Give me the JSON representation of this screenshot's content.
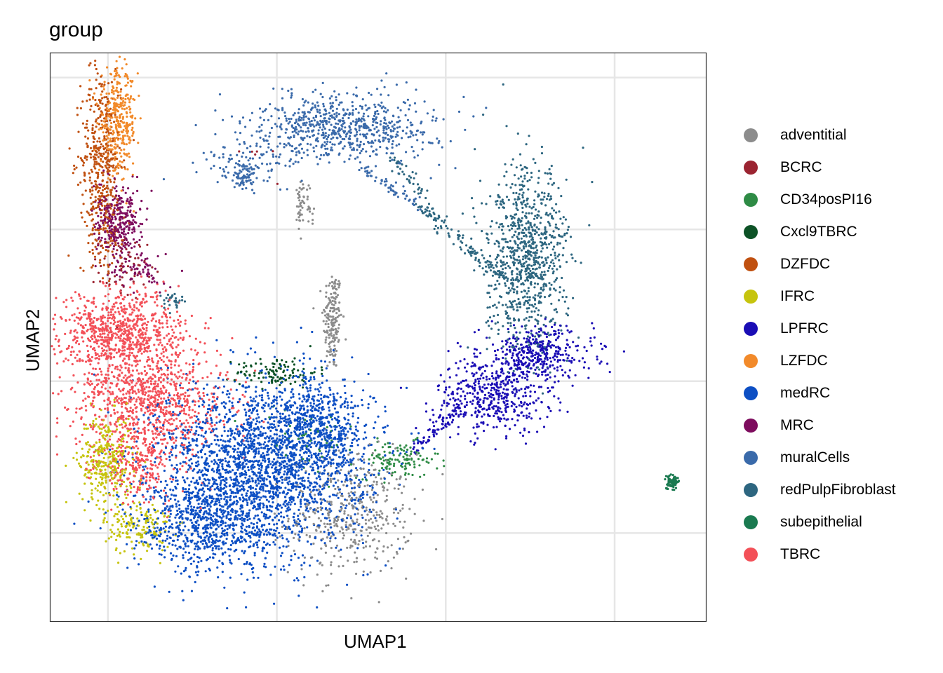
{
  "chart_data": {
    "type": "scatter",
    "title": "group",
    "xlabel": "UMAP1",
    "ylabel": "UMAP2",
    "x_ticks_labeled": false,
    "y_ticks_labeled": false,
    "grid": true,
    "legend_position": "right",
    "legend_dot_style": "filled circle",
    "series": [
      {
        "name": "adventitial",
        "color": "#8c8c8c",
        "clusters": [
          {
            "cx": 4.65,
            "cy": 5.0,
            "sx": 0.14,
            "sy": 0.85,
            "n": 180
          },
          {
            "cx": 5.2,
            "cy": -1.4,
            "sx": 0.9,
            "sy": 1.0,
            "n": 420
          },
          {
            "cx": 3.7,
            "cy": 8.8,
            "sx": 0.05,
            "sy": 0.5,
            "n": 25
          }
        ]
      },
      {
        "name": "BCRC",
        "color": "#9b2431",
        "clusters": [
          {
            "cx": -1.55,
            "cy": 6.7,
            "sx": 0.35,
            "sy": 0.5,
            "n": 60
          },
          {
            "cx": 2.2,
            "cy": 10.4,
            "sx": 0.6,
            "sy": 0.3,
            "n": 6
          }
        ]
      },
      {
        "name": "CD34posPI16",
        "color": "#2e8b45",
        "clusters": [
          {
            "cx": 6.6,
            "cy": 0.4,
            "sx": 0.6,
            "sy": 0.3,
            "n": 120
          },
          {
            "cx": 3.8,
            "cy": 1.1,
            "sx": 0.8,
            "sy": 0.6,
            "n": 40
          }
        ]
      },
      {
        "name": "Cxcl9TBRC",
        "color": "#0d5226",
        "clusters": [
          {
            "cx": 3.0,
            "cy": 3.3,
            "sx": 0.6,
            "sy": 0.25,
            "n": 110
          }
        ]
      },
      {
        "name": "DZFDC",
        "color": "#c05010",
        "clusters": [
          {
            "cx": -2.2,
            "cy": 10.3,
            "sx": 0.3,
            "sy": 1.5,
            "n": 420
          },
          {
            "cx": -2.0,
            "cy": 7.8,
            "sx": 0.35,
            "sy": 0.6,
            "n": 60
          }
        ]
      },
      {
        "name": "IFRC",
        "color": "#c6c40e",
        "clusters": [
          {
            "cx": -2.05,
            "cy": 0.4,
            "sx": 0.4,
            "sy": 0.75,
            "n": 320
          },
          {
            "cx": -1.1,
            "cy": -1.8,
            "sx": 0.5,
            "sy": 0.45,
            "n": 160
          }
        ]
      },
      {
        "name": "LPFRC",
        "color": "#1a0db5",
        "clusters": [
          {
            "cx": 9.4,
            "cy": 2.5,
            "sx": 0.85,
            "sy": 0.6,
            "n": 450
          },
          {
            "cx": 10.7,
            "cy": 3.9,
            "sx": 0.85,
            "sy": 0.45,
            "n": 380
          }
        ]
      },
      {
        "name": "LZFDC",
        "color": "#f28a2a",
        "clusters": [
          {
            "cx": -1.7,
            "cy": 11.5,
            "sx": 0.28,
            "sy": 0.85,
            "n": 340
          }
        ]
      },
      {
        "name": "medRC",
        "color": "#0d4fc4",
        "clusters": [
          {
            "cx": 2.6,
            "cy": 0.3,
            "sx": 1.55,
            "sy": 1.35,
            "n": 2300
          },
          {
            "cx": 1.0,
            "cy": -1.7,
            "sx": 1.1,
            "sy": 0.8,
            "n": 700
          },
          {
            "cx": 4.3,
            "cy": 1.6,
            "sx": 0.6,
            "sy": 0.8,
            "n": 400
          }
        ]
      },
      {
        "name": "MRC",
        "color": "#7e0c5e",
        "clusters": [
          {
            "cx": -1.7,
            "cy": 8.2,
            "sx": 0.35,
            "sy": 0.55,
            "n": 320
          },
          {
            "cx": -1.1,
            "cy": 6.6,
            "sx": 0.4,
            "sy": 0.3,
            "n": 70
          }
        ]
      },
      {
        "name": "muralCells",
        "color": "#3a6aaa",
        "clusters": [
          {
            "cx": 5.0,
            "cy": 11.4,
            "sx": 1.35,
            "sy": 0.55,
            "n": 700
          },
          {
            "cx": 2.4,
            "cy": 10.2,
            "sx": 0.85,
            "sy": 0.35,
            "n": 90
          },
          {
            "cx": 2.05,
            "cy": 9.7,
            "sx": 0.2,
            "sy": 0.25,
            "n": 70
          }
        ]
      },
      {
        "name": "redPulpFibroblast",
        "color": "#2d6680",
        "clusters": [
          {
            "cx": 10.4,
            "cy": 7.0,
            "sx": 0.6,
            "sy": 1.5,
            "n": 880
          },
          {
            "cx": 7.6,
            "cy": 8.2,
            "sx": 0.2,
            "sy": 0.2,
            "n": 0
          },
          {
            "cx": -0.1,
            "cy": 5.7,
            "sx": 0.2,
            "sy": 0.15,
            "n": 30
          }
        ]
      },
      {
        "name": "subepithelial",
        "color": "#1a7a50",
        "clusters": [
          {
            "cx": 14.7,
            "cy": -0.3,
            "sx": 0.12,
            "sy": 0.12,
            "n": 70
          }
        ]
      },
      {
        "name": "TBRC",
        "color": "#f35058",
        "clusters": [
          {
            "cx": -1.6,
            "cy": 4.6,
            "sx": 0.9,
            "sy": 0.7,
            "n": 800
          },
          {
            "cx": -0.7,
            "cy": 2.3,
            "sx": 1.1,
            "sy": 0.95,
            "n": 900
          },
          {
            "cx": -1.2,
            "cy": 0.2,
            "sx": 0.6,
            "sy": 0.6,
            "n": 220
          }
        ]
      }
    ],
    "bridges": [
      {
        "series": "muralCells",
        "x1": 5.5,
        "y1": 10.0,
        "x2": 7.2,
        "y2": 8.8,
        "n": 60
      },
      {
        "series": "redPulpFibroblast",
        "x1": 7.2,
        "y1": 8.8,
        "x2": 9.7,
        "y2": 6.4,
        "n": 120
      },
      {
        "series": "redPulpFibroblast",
        "x1": 6.5,
        "y1": 10.3,
        "x2": 7.4,
        "y2": 9.0,
        "n": 40
      },
      {
        "series": "LPFRC",
        "x1": 7.1,
        "y1": 0.8,
        "x2": 8.5,
        "y2": 2.2,
        "n": 70
      },
      {
        "series": "adventitial",
        "x1": 3.75,
        "y1": 9.5,
        "x2": 3.95,
        "y2": 8.4,
        "n": 30
      }
    ],
    "xlim": [
      -3.7,
      15.7
    ],
    "ylim": [
      -4.9,
      13.8
    ],
    "x_grid": [
      -2,
      3,
      8,
      13
    ],
    "y_grid": [
      -2,
      3,
      8,
      13
    ]
  }
}
